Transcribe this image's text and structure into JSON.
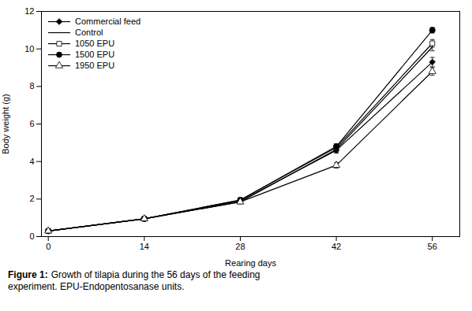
{
  "chart_data": {
    "type": "line",
    "x": [
      0,
      14,
      28,
      42,
      56
    ],
    "xlabel": "Rearing days",
    "ylabel": "Body weight (g)",
    "xlim": [
      -1,
      60
    ],
    "xticks": [
      0,
      14,
      28,
      42,
      56
    ],
    "ylim": [
      0,
      12
    ],
    "yticks": [
      0,
      2,
      4,
      6,
      8,
      10,
      12
    ],
    "grid": false,
    "legend": "upper left",
    "caption_label": "Figure 1:",
    "caption": "Growth of tilapia during the 56 days of the feeding\nexperiment. EPU-Endopentosanase units.",
    "series": [
      {
        "name": "Commercial feed",
        "color": "black",
        "marker": "diamond",
        "line_style": "solid",
        "values": [
          0.3,
          0.95,
          1.9,
          4.6,
          9.3
        ],
        "errors": [
          0.05,
          0.07,
          0.1,
          0.15,
          0.25
        ]
      },
      {
        "name": "Control",
        "color": "black",
        "marker": "none",
        "line_style": "solid",
        "values": [
          0.3,
          0.95,
          1.85,
          4.65,
          10.1
        ],
        "errors": [
          0.05,
          0.07,
          0.1,
          0.15,
          0.2
        ]
      },
      {
        "name": "1050 EPU",
        "color": "black",
        "marker": "square_open",
        "line_style": "solid",
        "values": [
          0.3,
          0.95,
          1.95,
          4.75,
          10.3
        ],
        "errors": [
          0.05,
          0.07,
          0.1,
          0.15,
          0.2
        ]
      },
      {
        "name": "1500 EPU",
        "color": "black",
        "marker": "circle",
        "line_style": "solid",
        "values": [
          0.3,
          0.95,
          1.95,
          4.8,
          11.0
        ],
        "errors": [
          0.05,
          0.07,
          0.1,
          0.15,
          0.15
        ]
      },
      {
        "name": "1950 EPU",
        "color": "black",
        "marker": "triangle_open",
        "line_style": "solid",
        "values": [
          0.3,
          0.95,
          1.85,
          3.8,
          8.8
        ],
        "errors": [
          0.05,
          0.07,
          0.1,
          0.15,
          0.2
        ]
      }
    ]
  }
}
